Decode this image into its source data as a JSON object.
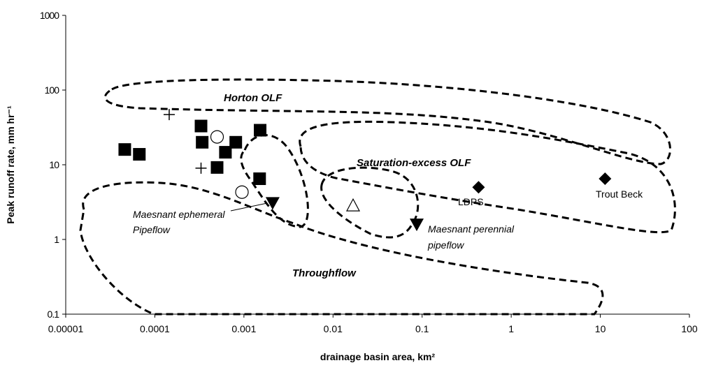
{
  "chart_data": {
    "type": "scatter",
    "xlabel": "drainage basin area, km²",
    "ylabel": "Peak runoff rate, mm hr⁻¹",
    "xlog": true,
    "ylog": true,
    "xlim": [
      1e-05,
      100
    ],
    "ylim": [
      0.1,
      1000
    ],
    "xticks": [
      1e-05,
      0.0001,
      0.001,
      0.01,
      0.1,
      1,
      10,
      100
    ],
    "yticks": [
      0.1,
      1,
      10,
      100,
      1000
    ],
    "color": "#000000",
    "series": [
      {
        "marker": "square",
        "x": [
          4.6e-05,
          6.7e-05,
          0.00033,
          0.00034,
          0.00062,
          0.0005,
          0.00081,
          0.00152,
          0.0015
        ],
        "y": [
          16,
          13.8,
          33,
          20,
          14.7,
          9.2,
          20,
          29,
          6.5
        ]
      },
      {
        "marker": "plus",
        "x": [
          0.000145,
          0.00033
        ],
        "y": [
          47,
          9.0
        ]
      },
      {
        "marker": "circle",
        "x": [
          0.00095,
          0.0005
        ],
        "y": [
          4.3,
          23.6
        ]
      },
      {
        "marker": "triangle-up",
        "x": [
          0.0168
        ],
        "y": [
          2.8
        ]
      },
      {
        "marker": "triangle-down",
        "x": [
          0.0021,
          0.087
        ],
        "y": [
          3.1,
          1.6
        ]
      },
      {
        "marker": "diamond",
        "x": [
          0.43,
          11.3
        ],
        "y": [
          5.0,
          6.5
        ]
      }
    ],
    "annotations": {
      "horton": "Horton OLF",
      "saturation": "Saturation-excess OLF",
      "throughflow": "Throughflow",
      "ephemeral": [
        "Maesnant ephemeral",
        "Pipeflow"
      ],
      "perennial": [
        "Maesnant perennial",
        "pipeflow"
      ],
      "ldps": "LDPS",
      "troutbeck": "Trout Beck"
    }
  }
}
